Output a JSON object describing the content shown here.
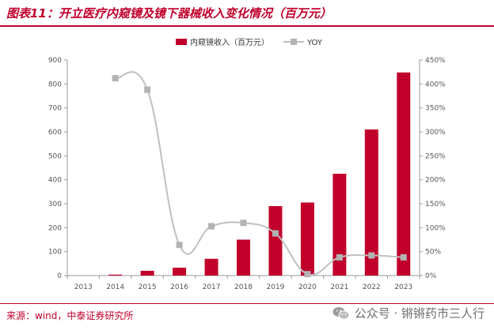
{
  "header": {
    "title": "图表11：开立医疗内窥镜及镜下器械收入变化情况（百万元）"
  },
  "footer": {
    "source": "来源：wind，中泰证券研究所"
  },
  "watermark": {
    "text": "公众号 · 锵锵药市三人行",
    "icon": "wechat-icon"
  },
  "colors": {
    "bar": "#c0002b",
    "line": "#c0c0c0",
    "accent": "#c0002b"
  },
  "chart_data": {
    "type": "bar",
    "categories": [
      "2013",
      "2014",
      "2015",
      "2016",
      "2017",
      "2018",
      "2019",
      "2020",
      "2021",
      "2022",
      "2023"
    ],
    "series": [
      {
        "name": "内窥镜收入（百万元）",
        "type": "bar",
        "axis": "left",
        "values": [
          0,
          4,
          20,
          33,
          70,
          150,
          290,
          305,
          425,
          610,
          848
        ]
      },
      {
        "name": "YOY",
        "type": "line",
        "axis": "right",
        "values": [
          null,
          4.12,
          3.88,
          0.64,
          1.03,
          1.1,
          0.88,
          0.03,
          0.38,
          0.42,
          0.38
        ]
      }
    ],
    "ylim_left": [
      0,
      900
    ],
    "ylim_right": [
      0,
      4.5
    ],
    "yticks_left": [
      "0",
      "100",
      "200",
      "300",
      "400",
      "500",
      "600",
      "700",
      "800",
      "900"
    ],
    "yticks_right": [
      "0%",
      "50%",
      "100%",
      "150%",
      "200%",
      "250%",
      "300%",
      "350%",
      "400%",
      "450%"
    ],
    "legend": "top-center",
    "grid": false
  }
}
